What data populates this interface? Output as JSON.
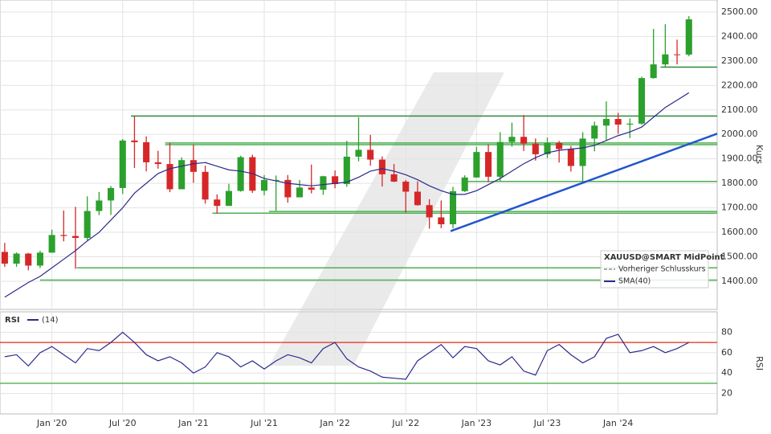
{
  "chart_data": [
    {
      "type": "candlestick",
      "ylabel": "Kurs",
      "legend_title": "XAUUSD@SMART MidPoint",
      "legend_extra": "Vorheriger Schlusskurs",
      "up_color": "#2ca02c",
      "down_color": "#d62728",
      "x": [
        -4,
        -3,
        -2,
        -1,
        0,
        1,
        2,
        3,
        4,
        5,
        6,
        7,
        8,
        9,
        10,
        11,
        12,
        13,
        14,
        15,
        16,
        17,
        18,
        19,
        20,
        21,
        22,
        23,
        24,
        25,
        26,
        27,
        28,
        29,
        30,
        31,
        32,
        33,
        34,
        35,
        36,
        37,
        38,
        39,
        40,
        41,
        42,
        43,
        44,
        45,
        46,
        47,
        48,
        49,
        50,
        51,
        52,
        53,
        54
      ],
      "open": [
        1520,
        1472,
        1513,
        1464,
        1517,
        1589,
        1585,
        1577,
        1687,
        1730,
        1781,
        1975,
        1968,
        1886,
        1879,
        1776,
        1895,
        1847,
        1734,
        1708,
        1769,
        1907,
        1770,
        1814,
        1814,
        1743,
        1783,
        1774,
        1829,
        1797,
        1909,
        1937,
        1897,
        1837,
        1807,
        1766,
        1711,
        1661,
        1633,
        1768,
        1824,
        1928,
        1827,
        1969,
        1990,
        1962,
        1919,
        1965,
        1940,
        1871,
        1983,
        2036,
        2063,
        2040,
        2044,
        2230,
        2286,
        2327,
        2326
      ],
      "high": [
        1557,
        1518,
        1516,
        1525,
        1611,
        1689,
        1704,
        1747,
        1765,
        1789,
        1981,
        2075,
        1992,
        1933,
        1965,
        1906,
        1959,
        1872,
        1755,
        1798,
        1913,
        1917,
        1834,
        1832,
        1834,
        1814,
        1877,
        1831,
        1853,
        1974,
        2070,
        1998,
        1910,
        1879,
        1814,
        1808,
        1735,
        1730,
        1786,
        1833,
        1949,
        1960,
        2009,
        2048,
        2079,
        1983,
        1987,
        1973,
        1953,
        2009,
        2052,
        2135,
        2088,
        2065,
        2236,
        2431,
        2450,
        2387,
        2483
      ],
      "low": [
        1459,
        1459,
        1445,
        1454,
        1517,
        1563,
        1451,
        1568,
        1670,
        1671,
        1757,
        1863,
        1849,
        1860,
        1764,
        1776,
        1802,
        1717,
        1677,
        1708,
        1766,
        1761,
        1751,
        1688,
        1721,
        1746,
        1759,
        1753,
        1780,
        1786,
        1890,
        1872,
        1787,
        1805,
        1681,
        1709,
        1615,
        1617,
        1616,
        1765,
        1823,
        1805,
        1810,
        1950,
        1932,
        1893,
        1903,
        1885,
        1848,
        1810,
        1931,
        1973,
        2002,
        1985,
        2039,
        2228,
        2277,
        2286,
        2319
      ],
      "close": [
        1472,
        1513,
        1464,
        1517,
        1589,
        1585,
        1577,
        1687,
        1730,
        1781,
        1975,
        1968,
        1886,
        1879,
        1776,
        1895,
        1847,
        1734,
        1708,
        1769,
        1907,
        1770,
        1814,
        1814,
        1743,
        1783,
        1774,
        1829,
        1797,
        1909,
        1937,
        1897,
        1837,
        1807,
        1766,
        1711,
        1661,
        1633,
        1768,
        1824,
        1928,
        1827,
        1969,
        1990,
        1962,
        1919,
        1965,
        1940,
        1871,
        1983,
        2036,
        2063,
        2040,
        2044,
        2230,
        2286,
        2327,
        2326,
        2470
      ],
      "series": [
        {
          "name": "SMA(40)",
          "color": "#2b2b8c",
          "values": [
            1335,
            1365,
            1395,
            1420,
            1455,
            1490,
            1525,
            1565,
            1600,
            1650,
            1700,
            1760,
            1800,
            1840,
            1860,
            1870,
            1880,
            1885,
            1870,
            1855,
            1850,
            1840,
            1820,
            1810,
            1800,
            1795,
            1790,
            1795,
            1800,
            1805,
            1825,
            1850,
            1860,
            1850,
            1835,
            1815,
            1790,
            1770,
            1755,
            1755,
            1770,
            1795,
            1820,
            1850,
            1880,
            1905,
            1925,
            1935,
            1940,
            1945,
            1955,
            1975,
            1995,
            2010,
            2030,
            2070,
            2110,
            2140,
            2170
          ]
        }
      ],
      "hlines": [
        {
          "y": 2075,
          "x_start": 6.7,
          "color": "#2e8b3a"
        },
        {
          "y": 1965,
          "x_start": 9.6,
          "color": "#4caf50"
        },
        {
          "y": 1958,
          "x_start": 9.6,
          "color": "#4caf50"
        },
        {
          "y": 1808,
          "x_start": 35.1,
          "color": "#4caf50"
        },
        {
          "y": 1685,
          "x_start": 18.4,
          "color": "#4caf50"
        },
        {
          "y": 1678,
          "x_start": 13.6,
          "color": "#4caf50"
        },
        {
          "y": 1455,
          "x_start": 2.1,
          "color": "#4caf50"
        },
        {
          "y": 1405,
          "x_start": -1,
          "color": "#4caf50"
        },
        {
          "y": 2275,
          "x_start": 51.6,
          "color": "#2e8b3a"
        }
      ],
      "trendline": {
        "x": [
          33.8,
          56.4
        ],
        "y": [
          1605,
          2003
        ],
        "color": "#2255cc"
      },
      "xlim": [
        -4.4,
        56.4
      ],
      "ylim": [
        1285,
        2549
      ],
      "yticks": [
        {
          "value": 1400,
          "label": "1400.00"
        },
        {
          "value": 1500,
          "label": "1500.00"
        },
        {
          "value": 1600,
          "label": "1600.00"
        },
        {
          "value": 1700,
          "label": "1700.00"
        },
        {
          "value": 1800,
          "label": "1800.00"
        },
        {
          "value": 1900,
          "label": "1900.00"
        },
        {
          "value": 2000,
          "label": "2000.00"
        },
        {
          "value": 2100,
          "label": "2100.00"
        },
        {
          "value": 2200,
          "label": "2200.00"
        },
        {
          "value": 2300,
          "label": "2300.00"
        },
        {
          "value": 2400,
          "label": "2400.00"
        },
        {
          "value": 2500,
          "label": "2500.00"
        }
      ],
      "xticks": [
        {
          "value": 0,
          "label": "Jan '20"
        },
        {
          "value": 6,
          "label": "Jul '20"
        },
        {
          "value": 12,
          "label": "Jan '21"
        },
        {
          "value": 18,
          "label": "Jul '21"
        },
        {
          "value": 24,
          "label": "Jan '22"
        },
        {
          "value": 30,
          "label": "Jul '22"
        },
        {
          "value": 36,
          "label": "Jan '23"
        },
        {
          "value": 42,
          "label": "Jul '23"
        },
        {
          "value": 48,
          "label": "Jan '24"
        }
      ],
      "grid": true
    },
    {
      "type": "line",
      "title": "RSI",
      "ylabel": "RSI",
      "x": [
        -4,
        -3,
        -2,
        -1,
        0,
        1,
        2,
        3,
        4,
        5,
        6,
        7,
        8,
        9,
        10,
        11,
        12,
        13,
        14,
        15,
        16,
        17,
        18,
        19,
        20,
        21,
        22,
        23,
        24,
        25,
        26,
        27,
        28,
        29,
        30,
        31,
        32,
        33,
        34,
        35,
        36,
        37,
        38,
        39,
        40,
        41,
        42,
        43,
        44,
        45,
        46,
        47,
        48,
        49,
        50,
        51,
        52,
        53,
        54
      ],
      "series": [
        {
          "name": "(14)",
          "color": "#2b2b8c",
          "values": [
            56,
            58,
            47,
            60,
            66,
            58,
            50,
            64,
            62,
            70,
            80,
            70,
            58,
            52,
            56,
            50,
            40,
            46,
            60,
            56,
            46,
            52,
            44,
            52,
            58,
            55,
            50,
            64,
            70,
            54,
            46,
            42,
            36,
            35,
            34,
            52,
            60,
            68,
            55,
            66,
            64,
            52,
            48,
            56,
            42,
            38,
            62,
            68,
            58,
            50,
            56,
            74,
            78,
            60,
            62,
            66,
            60,
            64,
            70
          ]
        }
      ],
      "hlines": [
        {
          "y": 70,
          "color": "#e74c3c"
        },
        {
          "y": 30,
          "color": "#5cb85c"
        }
      ],
      "xlim": [
        -4.4,
        56.4
      ],
      "ylim": [
        0,
        100
      ],
      "yticks": [
        20,
        40,
        60,
        80
      ],
      "grid": true
    }
  ]
}
